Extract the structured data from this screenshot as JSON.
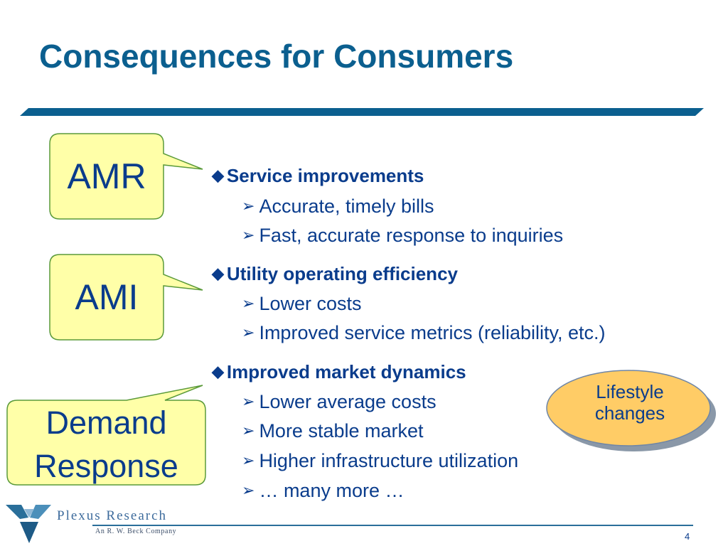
{
  "slide": {
    "title": "Consequences for Consumers",
    "page_number": "4"
  },
  "callouts": {
    "amr": "AMR",
    "ami": "AMI",
    "demand_line1": "Demand",
    "demand_line2": "Response"
  },
  "sections": [
    {
      "heading": "Service improvements",
      "items": [
        "Accurate, timely bills",
        "Fast, accurate response to inquiries"
      ]
    },
    {
      "heading": "Utility operating efficiency",
      "items": [
        "Lower costs",
        "Improved service metrics (reliability, etc.)"
      ]
    },
    {
      "heading": "Improved market dynamics",
      "items": [
        "Lower average costs",
        "More stable market",
        "Higher infrastructure utilization",
        "… many more …"
      ]
    }
  ],
  "bubble": {
    "line1": "Lifestyle",
    "line2": "changes"
  },
  "footer": {
    "logo_name": "Plexus Research",
    "logo_sub": "An R. W. Beck Company"
  },
  "glyphs": {
    "diamond": "◆",
    "arrow": "➢"
  },
  "colors": {
    "title": "#0b5f8f",
    "text": "#0a3c8c",
    "callout_fill": "#ffffa8",
    "callout_border": "#5a9a3a",
    "bubble_fill": "#ffcc66"
  }
}
